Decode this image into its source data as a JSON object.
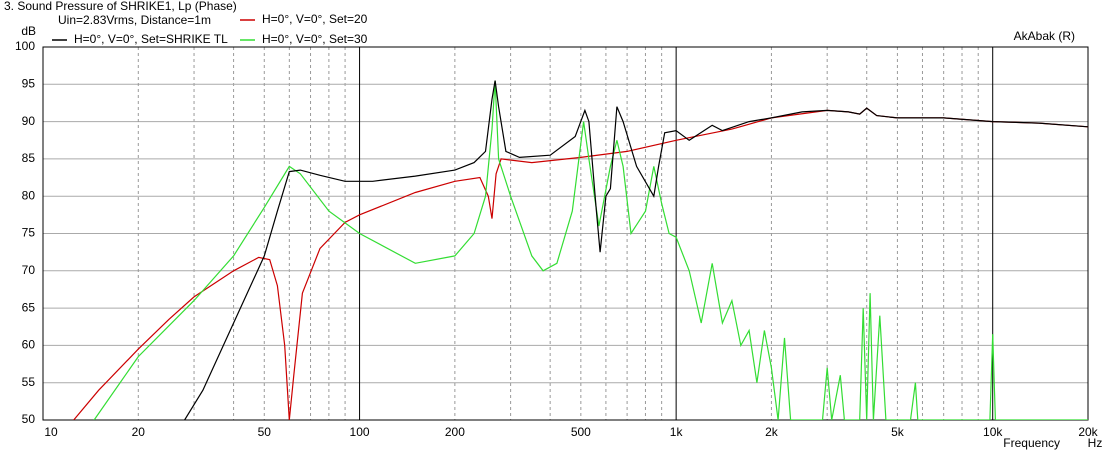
{
  "chart_data": {
    "type": "line",
    "title": "3. Sound Pressure of SHRIKE1, Lp (Phase)",
    "subtitle": "Uin=2.83Vrms, Distance=1m",
    "watermark": "AkAbak (R)",
    "y_label": "dB",
    "x_label": "Frequency",
    "x_unit": "Hz",
    "log_x": true,
    "grid": true,
    "xlim": [
      10,
      20000
    ],
    "ylim": [
      50,
      100
    ],
    "xticks": [
      10,
      20,
      50,
      100,
      200,
      500,
      {
        "value": 1000,
        "label": "1k"
      },
      {
        "value": 2000,
        "label": "2k"
      },
      {
        "value": 5000,
        "label": "5k"
      },
      {
        "value": 10000,
        "label": "10k"
      },
      {
        "value": 20000,
        "label": "20k"
      }
    ],
    "xminor": [
      30,
      40,
      60,
      70,
      80,
      90,
      300,
      400,
      600,
      700,
      800,
      900,
      3000,
      4000,
      6000,
      7000,
      8000,
      9000
    ],
    "yticks": [
      50,
      55,
      60,
      65,
      70,
      75,
      80,
      85,
      90,
      95,
      100
    ],
    "series": [
      {
        "name": "H=0°, V=0°, Set=SHRIKE TL",
        "color": "#000000",
        "x": [
          28,
          32,
          40,
          50,
          55,
          60,
          65,
          75,
          90,
          110,
          150,
          200,
          230,
          250,
          262,
          268,
          275,
          290,
          320,
          400,
          480,
          515,
          530,
          560,
          575,
          600,
          620,
          650,
          680,
          750,
          850,
          880,
          920,
          1000,
          1100,
          1300,
          1400,
          1700,
          2000,
          2500,
          3000,
          3500,
          3800,
          4000,
          4300,
          5000,
          7000,
          10000,
          14000,
          20000
        ],
        "values": [
          50,
          54,
          63,
          72,
          78,
          83.3,
          83.5,
          82.8,
          82,
          82,
          82.7,
          83.5,
          84.5,
          86,
          93,
          95.5,
          92,
          86,
          85.2,
          85.5,
          88,
          91.5,
          90,
          78,
          72.5,
          80,
          81,
          92,
          90,
          84,
          80,
          84,
          88.5,
          88.8,
          87.5,
          89.5,
          88.8,
          90,
          90.5,
          91.3,
          91.5,
          91.3,
          91,
          91.8,
          90.8,
          90.5,
          90.5,
          90,
          89.8,
          89.3
        ]
      },
      {
        "name": "H=0°, V=0°, Set=20",
        "color": "#cc0000",
        "x": [
          12.5,
          15,
          20,
          25,
          30,
          40,
          48,
          52,
          55,
          58,
          60,
          62,
          66,
          75,
          90,
          100,
          150,
          200,
          240,
          255,
          262,
          270,
          280,
          350,
          500,
          700,
          1000,
          1500,
          2000,
          3000,
          3500,
          3800,
          4000,
          4300,
          5000,
          7000,
          10000,
          14000,
          20000
        ],
        "values": [
          50,
          54,
          59.5,
          63.5,
          66.5,
          70,
          71.8,
          71.5,
          68,
          60,
          50,
          56,
          67,
          73,
          76.5,
          77.5,
          80.5,
          82,
          82.5,
          80,
          77,
          83,
          85,
          84.5,
          85.2,
          86,
          87.5,
          89,
          90.5,
          91.5,
          91.3,
          91,
          91.8,
          90.8,
          90.5,
          90.5,
          90,
          89.8,
          89.3
        ]
      },
      {
        "name": "H=0°, V=0°, Set=30",
        "color": "#33dd33",
        "x": [
          14.5,
          20,
          30,
          40,
          50,
          60,
          65,
          80,
          100,
          150,
          200,
          230,
          250,
          262,
          268,
          275,
          300,
          350,
          380,
          420,
          470,
          510,
          530,
          570,
          620,
          650,
          680,
          720,
          800,
          850,
          900,
          950,
          1000,
          1100,
          1200,
          1300,
          1400,
          1500,
          1600,
          1700,
          1800,
          1900,
          2000,
          2100,
          2200,
          2300,
          2900,
          3000,
          3100,
          3300,
          3400,
          3800,
          3900,
          4000,
          4100,
          4200,
          4400,
          4600,
          5500,
          5700,
          5800,
          9800,
          10000,
          10200,
          20000
        ],
        "values": [
          50,
          58.5,
          66,
          72,
          78.5,
          84,
          83,
          78,
          75,
          71,
          72,
          75,
          80,
          89,
          95.5,
          85,
          80,
          72,
          70,
          71,
          78,
          90,
          85,
          76,
          84,
          87.5,
          84,
          75,
          78,
          84,
          79,
          75,
          74.5,
          70,
          63,
          71,
          63,
          66,
          60,
          62,
          55,
          62,
          57,
          50,
          61,
          50,
          50,
          57,
          50,
          56,
          50,
          50,
          65,
          50,
          67,
          50,
          64,
          50,
          50,
          55,
          50,
          50,
          61.5,
          50,
          50
        ]
      }
    ]
  }
}
